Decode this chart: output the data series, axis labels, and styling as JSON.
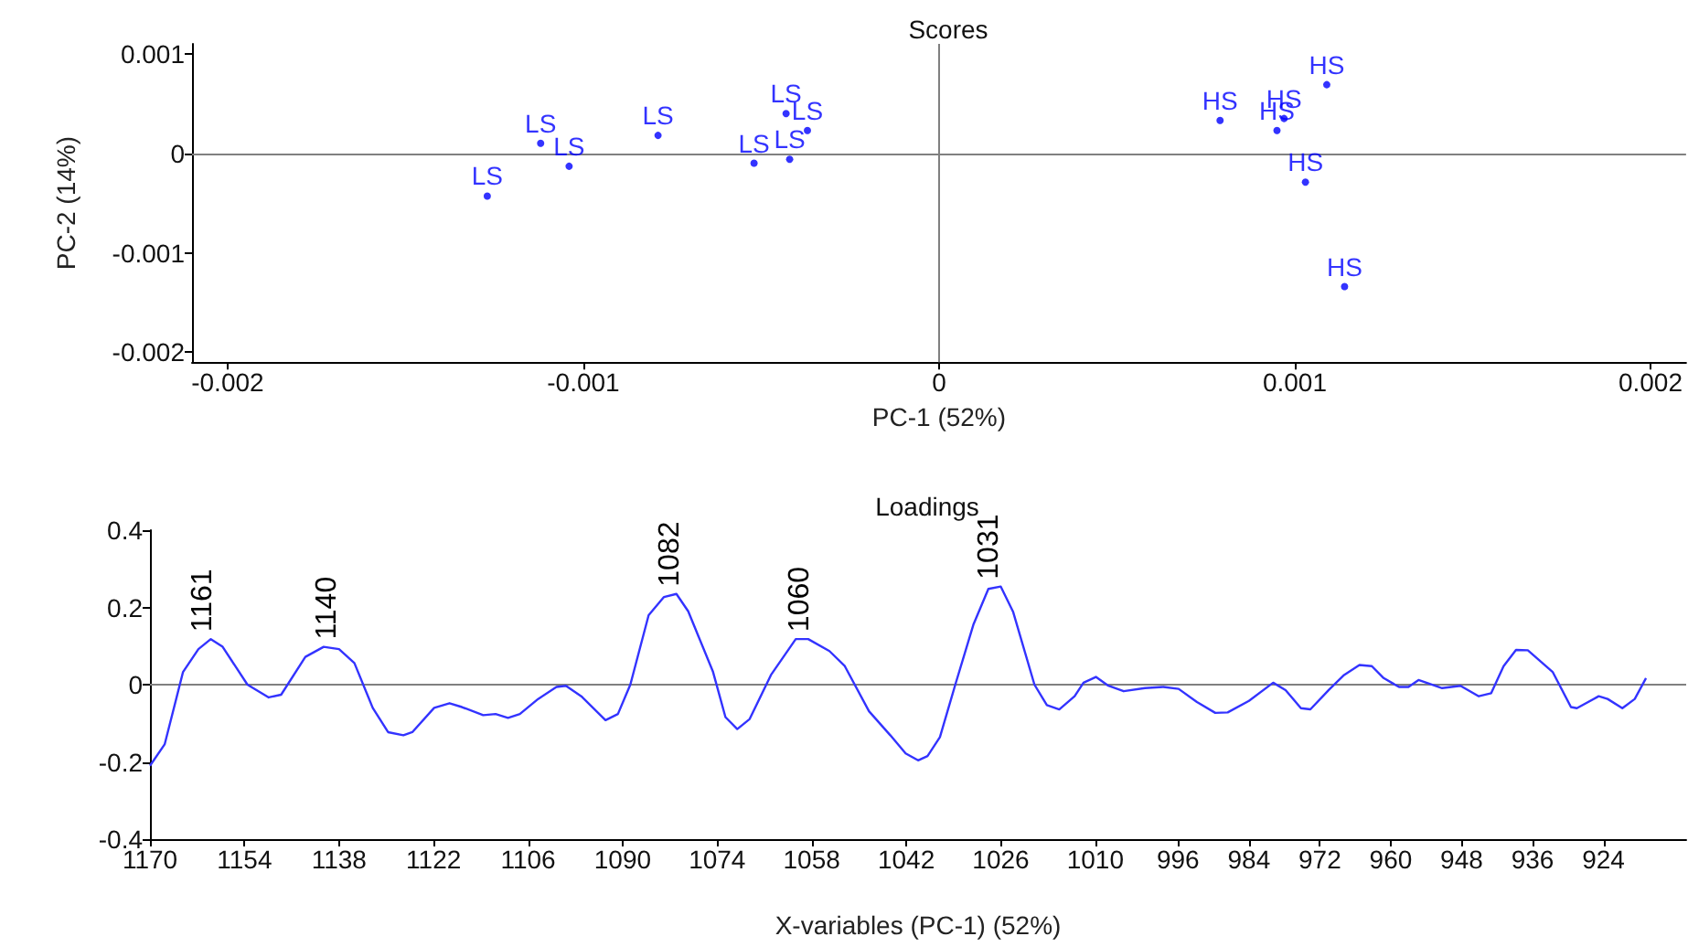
{
  "chart_data": [
    {
      "type": "scatter",
      "title": "Scores",
      "xlabel": "PC-1 (52%)",
      "ylabel": "PC-2 (14%)",
      "xlim": [
        -0.0021,
        0.0021
      ],
      "ylim": [
        -0.0021,
        0.0011
      ],
      "xticks": [
        -0.002,
        -0.001,
        0,
        0.001,
        0.002
      ],
      "yticks": [
        -0.002,
        -0.001,
        0,
        0.001
      ],
      "grid": false,
      "legend": false,
      "marker": "circle",
      "ref_lines": [
        {
          "axis": "x",
          "value": 0,
          "color": "#808080"
        },
        {
          "axis": "y",
          "value": 0,
          "color": "#808080"
        }
      ],
      "series": [
        {
          "name": "LS",
          "color": "#0000ff",
          "x": [
            -0.00127,
            -0.00112,
            -0.00104,
            -0.00079,
            -0.00052,
            -0.00043,
            -0.00042,
            -0.00037
          ],
          "values": [
            -0.00043,
            0.0001,
            -0.00013,
            0.00018,
            -0.0001,
            0.0004,
            -6e-05,
            0.00023
          ]
        },
        {
          "name": "HS",
          "color": "#0000ff",
          "x": [
            0.00079,
            0.00095,
            0.00097,
            0.00109,
            0.00103,
            0.00114
          ],
          "values": [
            0.00033,
            0.00023,
            0.00035,
            0.00069,
            -0.00029,
            -0.00134
          ]
        }
      ]
    },
    {
      "type": "line",
      "title": "Loadings",
      "xlabel": "X-variables (PC-1) (52%)",
      "xlim": [
        1170,
        910
      ],
      "ylim": [
        -0.4,
        0.4
      ],
      "xticks": [
        1170,
        1154,
        1138,
        1122,
        1106,
        1090,
        1074,
        1058,
        1042,
        1026,
        1010,
        996,
        984,
        972,
        960,
        948,
        936,
        924
      ],
      "yticks": [
        -0.4,
        -0.2,
        0,
        0.2,
        0.4
      ],
      "grid": false,
      "legend": false,
      "marker": "none",
      "line_style": "solid",
      "ref_lines": [
        {
          "axis": "y",
          "value": 0,
          "color": "#808080"
        }
      ],
      "annotations": [
        {
          "text": "1161",
          "x": 1161,
          "y": 0.118
        },
        {
          "text": "1140",
          "x": 1140,
          "y": 0.098
        },
        {
          "text": "1082",
          "x": 1082,
          "y": 0.235
        },
        {
          "text": "1060",
          "x": 1060,
          "y": 0.118
        },
        {
          "text": "1031",
          "x": 1028,
          "y": 0.254
        }
      ],
      "series": [
        {
          "color": "#3333ff",
          "x": [
            1170,
            1167.5,
            1164.4,
            1161.8,
            1159.7,
            1157.7,
            1153.5,
            1149.9,
            1147.8,
            1143.7,
            1140.6,
            1138,
            1135.4,
            1132.3,
            1129.7,
            1127.1,
            1125.6,
            1121.9,
            1119.3,
            1117.2,
            1113.6,
            1111.5,
            1109.4,
            1107.4,
            1104.3,
            1101.2,
            1099.6,
            1097,
            1092.9,
            1090.8,
            1088.7,
            1085.6,
            1083,
            1080.9,
            1078.9,
            1074.7,
            1072.6,
            1070.6,
            1068.5,
            1064.9,
            1060.7,
            1058.6,
            1055,
            1052.4,
            1048.3,
            1044.7,
            1042.1,
            1040,
            1038.4,
            1036.3,
            1033.7,
            1030.6,
            1028.1,
            1026,
            1023.9,
            1020.3,
            1018.2,
            1016.1,
            1013.5,
            1012,
            1009.9,
            1007.9,
            1005.2,
            1001.6,
            998.5,
            995.9,
            992.8,
            989.7,
            987.6,
            984,
            979.9,
            977.8,
            975.2,
            973.6,
            970.5,
            967.9,
            965.3,
            963.2,
            961.2,
            958.6,
            957,
            955.3,
            953.4,
            951.3,
            948.2,
            945.1,
            943,
            940.9,
            938.8,
            936.8,
            932.6,
            929.5,
            928.5,
            924.8,
            923.3,
            920.8,
            918.7,
            916.8
          ],
          "values": [
            -0.21,
            -0.154,
            0.033,
            0.092,
            0.118,
            0.098,
            0,
            -0.033,
            -0.026,
            0.072,
            0.098,
            0.092,
            0.056,
            -0.06,
            -0.123,
            -0.131,
            -0.123,
            -0.06,
            -0.048,
            -0.058,
            -0.079,
            -0.076,
            -0.086,
            -0.076,
            -0.037,
            -0.006,
            -0.003,
            -0.03,
            -0.092,
            -0.076,
            0,
            0.18,
            0.227,
            0.235,
            0.19,
            0.033,
            -0.084,
            -0.115,
            -0.089,
            0.025,
            0.118,
            0.118,
            0.087,
            0.048,
            -0.069,
            -0.131,
            -0.178,
            -0.196,
            -0.185,
            -0.136,
            0,
            0.157,
            0.248,
            0.254,
            0.188,
            0,
            -0.053,
            -0.064,
            -0.03,
            0.005,
            0.02,
            -0.002,
            -0.017,
            -0.009,
            -0.006,
            -0.011,
            -0.045,
            -0.073,
            -0.072,
            -0.042,
            0.005,
            -0.014,
            -0.061,
            -0.064,
            -0.014,
            0.025,
            0.051,
            0.048,
            0.017,
            -0.006,
            -0.006,
            0.012,
            0.002,
            -0.009,
            -0.003,
            -0.03,
            -0.022,
            0.048,
            0.09,
            0.089,
            0.033,
            -0.058,
            -0.061,
            -0.03,
            -0.037,
            -0.061,
            -0.037,
            0.017
          ]
        }
      ]
    }
  ]
}
